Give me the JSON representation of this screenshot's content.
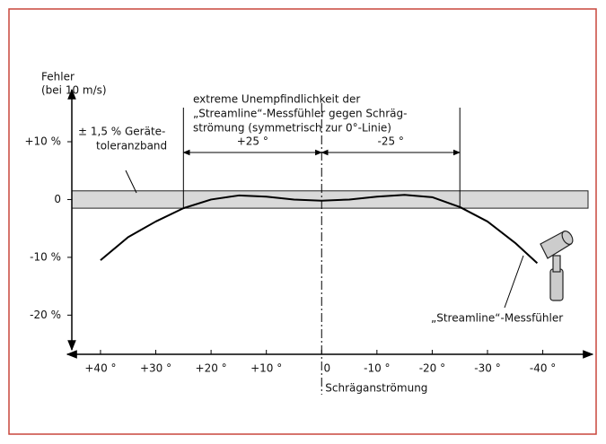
{
  "chart_data": {
    "type": "line",
    "ylabel": "Fehler",
    "ylabel_sub": "(bei 10 m/s)",
    "xlabel": "Schräganströmung",
    "x": [
      40,
      35,
      30,
      25,
      20,
      15,
      10,
      5,
      0,
      -5,
      -10,
      -15,
      -20,
      -25,
      -30,
      -35,
      -39
    ],
    "series": [
      {
        "name": "„Streamline“-Messfühler",
        "color": "#000000",
        "values": [
          -10.5,
          -6.5,
          -3.8,
          -1.5,
          0,
          0.7,
          0.5,
          0,
          -0.2,
          0,
          0.5,
          0.8,
          0.4,
          -1.3,
          -3.8,
          -7.5,
          -11
        ]
      }
    ],
    "xlim": [
      46,
      -49
    ],
    "ylim": [
      -26,
      19
    ],
    "xticks": [
      {
        "value": 40,
        "label": "+40 °"
      },
      {
        "value": 30,
        "label": "+30 °"
      },
      {
        "value": 20,
        "label": "+20 °"
      },
      {
        "value": 10,
        "label": "+10 °"
      },
      0,
      {
        "value": -10,
        "label": "-10 °"
      },
      {
        "value": -20,
        "label": "-20 °"
      },
      {
        "value": -30,
        "label": "-30 °"
      },
      {
        "value": -40,
        "label": "-40 °"
      }
    ],
    "yticks": [
      {
        "value": 10,
        "label": "+10 %"
      },
      0,
      {
        "value": -10,
        "label": "-10 %"
      },
      {
        "value": -20,
        "label": "-20 %"
      }
    ],
    "band": {
      "low": -1.5,
      "high": 1.5,
      "color": "#d9d9d9",
      "label_lines": [
        "± 1,5 % Geräte-",
        "toleranzband"
      ]
    },
    "zone": {
      "bounds": [
        25,
        -25
      ],
      "labels": [
        "+25 °",
        "-25 °"
      ],
      "text_lines": [
        "extreme Unempfindlichkeit der",
        "„Streamline“-Messfühler gegen Schräg-",
        "strömung (symmetrisch zur 0°-Linie)"
      ]
    }
  }
}
